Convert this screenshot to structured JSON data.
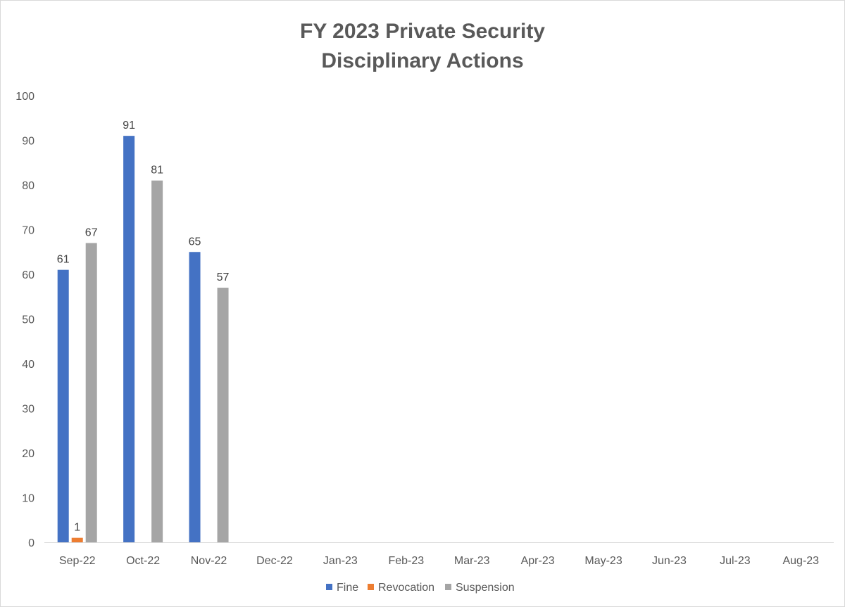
{
  "chart_data": {
    "type": "bar",
    "title": "FY 2023 Private Security Disciplinary Actions",
    "title_lines": [
      "FY 2023 Private Security",
      "Disciplinary Actions"
    ],
    "xlabel": "",
    "ylabel": "",
    "ylim": [
      0,
      100
    ],
    "yticks": [
      0,
      10,
      20,
      30,
      40,
      50,
      60,
      70,
      80,
      90,
      100
    ],
    "grid": false,
    "legend": "bottom",
    "categories": [
      "Sep-22",
      "Oct-22",
      "Nov-22",
      "Dec-22",
      "Jan-23",
      "Feb-23",
      "Mar-23",
      "Apr-23",
      "May-23",
      "Jun-23",
      "Jul-23",
      "Aug-23"
    ],
    "series": [
      {
        "name": "Fine",
        "color": "#4472c4",
        "values": [
          61,
          91,
          65,
          null,
          null,
          null,
          null,
          null,
          null,
          null,
          null,
          null
        ]
      },
      {
        "name": "Revocation",
        "color": "#ed7d31",
        "values": [
          1,
          null,
          null,
          null,
          null,
          null,
          null,
          null,
          null,
          null,
          null,
          null
        ]
      },
      {
        "name": "Suspension",
        "color": "#a5a5a5",
        "values": [
          67,
          81,
          57,
          null,
          null,
          null,
          null,
          null,
          null,
          null,
          null,
          null
        ]
      }
    ]
  }
}
